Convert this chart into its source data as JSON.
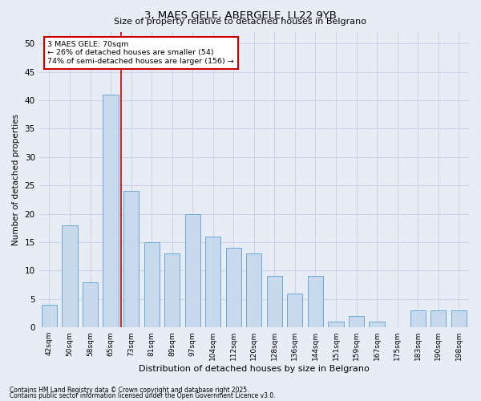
{
  "title1": "3, MAES GELE, ABERGELE, LL22 9YB",
  "title2": "Size of property relative to detached houses in Belgrano",
  "xlabel": "Distribution of detached houses by size in Belgrano",
  "ylabel": "Number of detached properties",
  "categories": [
    "42sqm",
    "50sqm",
    "58sqm",
    "65sqm",
    "73sqm",
    "81sqm",
    "89sqm",
    "97sqm",
    "104sqm",
    "112sqm",
    "120sqm",
    "128sqm",
    "136sqm",
    "144sqm",
    "151sqm",
    "159sqm",
    "167sqm",
    "175sqm",
    "183sqm",
    "190sqm",
    "198sqm"
  ],
  "values": [
    4,
    18,
    8,
    41,
    24,
    15,
    13,
    20,
    16,
    14,
    13,
    9,
    6,
    9,
    1,
    2,
    1,
    0,
    3,
    3,
    3
  ],
  "bar_color": "#c8d9ee",
  "bar_edge_color": "#6aabd6",
  "highlight_index": 3,
  "red_line_x": 3.5,
  "red_line_color": "#cc0000",
  "annotation_text": "3 MAES GELE: 70sqm\n← 26% of detached houses are smaller (54)\n74% of semi-detached houses are larger (156) →",
  "annotation_box_color": "#ffffff",
  "annotation_box_edge": "#cc0000",
  "ylim": [
    0,
    52
  ],
  "yticks": [
    0,
    5,
    10,
    15,
    20,
    25,
    30,
    35,
    40,
    45,
    50
  ],
  "grid_color": "#c8d4e8",
  "background_color": "#e8edf5",
  "footer1": "Contains HM Land Registry data © Crown copyright and database right 2025.",
  "footer2": "Contains public sector information licensed under the Open Government Licence v3.0."
}
